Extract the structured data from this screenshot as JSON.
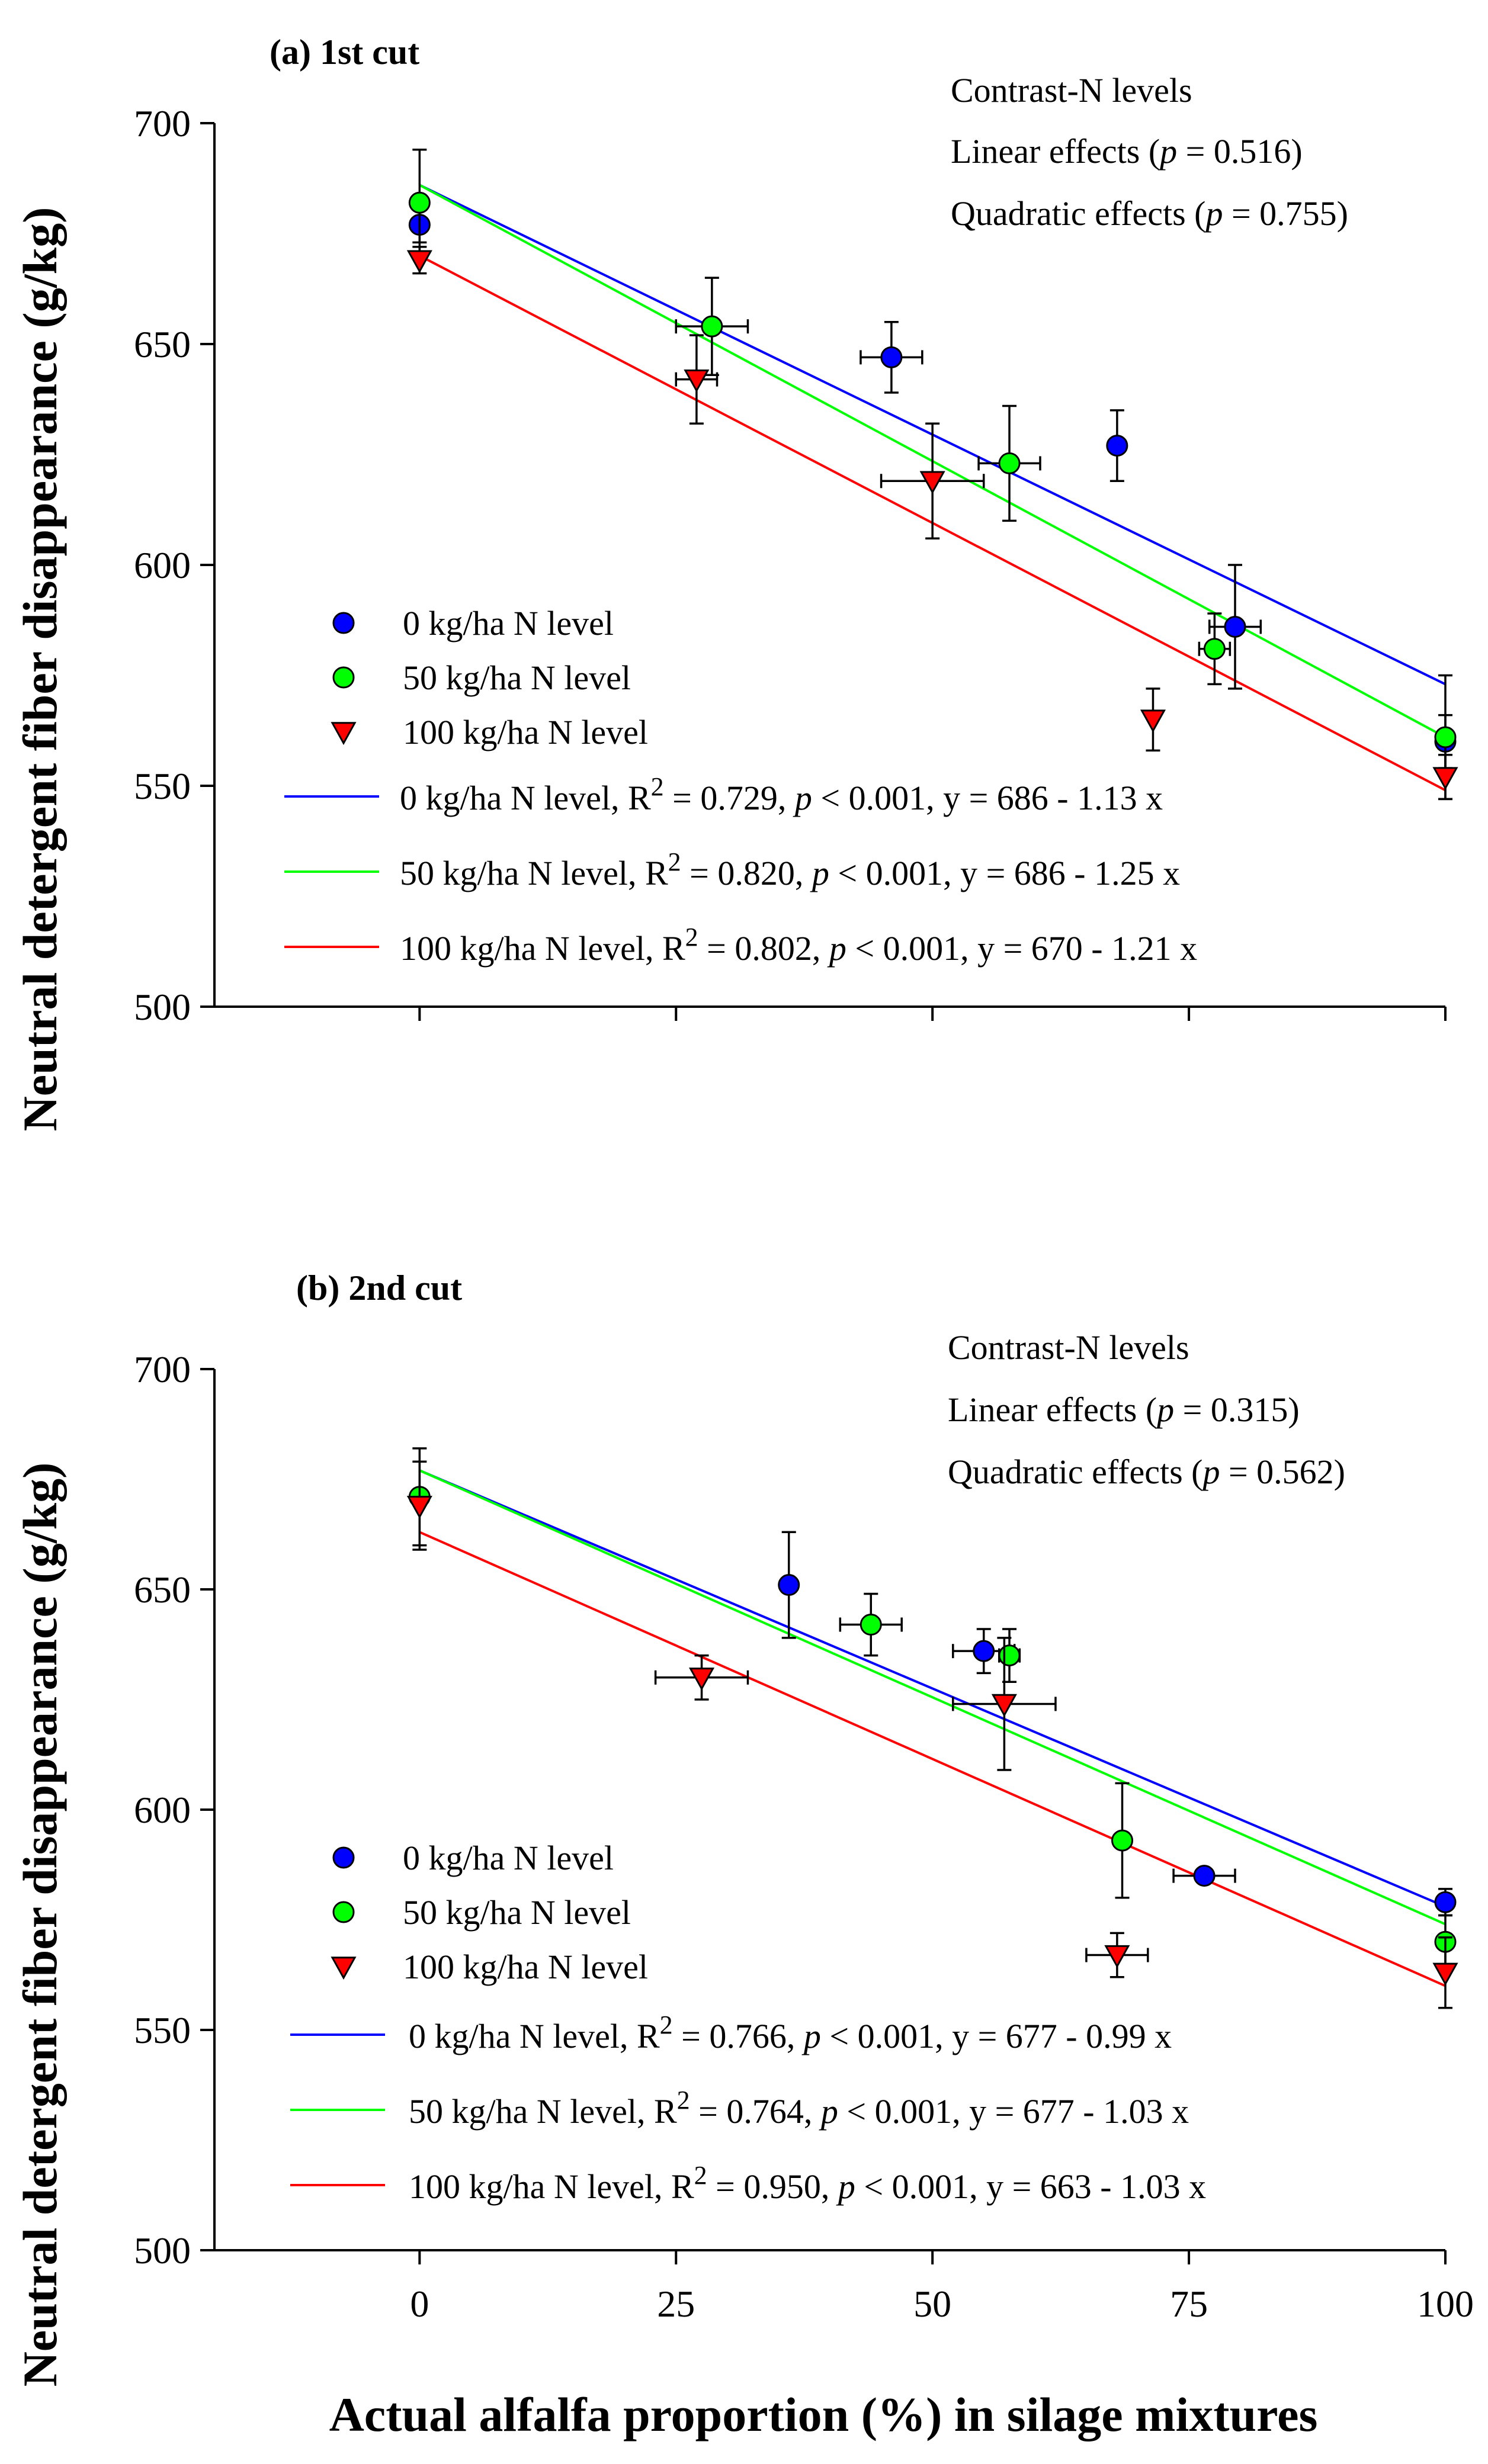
{
  "figure": {
    "ylabel": "Neutral detergent fiber disappearance (g/kg)",
    "xlabel": "Actual alfalfa proportion (%) in silage mixtures"
  },
  "chart_data": [
    {
      "type": "scatter",
      "panel_label": "(a)  1st cut",
      "ylabel": "Neutral detergent fiber disappearance (g/kg)",
      "xlim": [
        -20,
        100
      ],
      "ylim": [
        500,
        700
      ],
      "x_ticks": [
        0,
        25,
        50,
        75,
        100
      ],
      "y_ticks": [
        500,
        550,
        600,
        650,
        700
      ],
      "annotations": {
        "line1": "Contrast-N levels",
        "line2_pre": "Linear effects (",
        "line2_p": "p",
        "line2_post": " = 0.516)",
        "line3_pre": "Quadratic effects (",
        "line3_p": "p",
        "line3_post": " = 0.755)"
      },
      "series": [
        {
          "name": "0 kg/ha N level",
          "color": "#0000ff",
          "marker": "circle",
          "points": [
            {
              "x": 0,
              "y": 677,
              "xerr": 0,
              "yerr": 4
            },
            {
              "x": 46,
              "y": 647,
              "xerr": 3,
              "yerr": 8
            },
            {
              "x": 68,
              "y": 627,
              "xerr": 0,
              "yerr": 8
            },
            {
              "x": 79.5,
              "y": 586,
              "xerr": 2.5,
              "yerr": 14
            },
            {
              "x": 100,
              "y": 560,
              "xerr": 0,
              "yerr": 6
            }
          ],
          "fit": {
            "intercept": 686,
            "slope": -1.13,
            "x_range": [
              0,
              100
            ]
          },
          "fit_label": {
            "pre": "0 kg/ha N level, R",
            "sup": "2",
            "mid": " = 0.729, ",
            "p": "p",
            "post": " < 0.001, y = 686 - 1.13 x"
          }
        },
        {
          "name": "50 kg/ha N level",
          "color": "#00ff00",
          "marker": "circle",
          "points": [
            {
              "x": 0,
              "y": 682,
              "xerr": 0,
              "yerr": 12
            },
            {
              "x": 28.5,
              "y": 654,
              "xerr": 3.5,
              "yerr": 11
            },
            {
              "x": 57.5,
              "y": 623,
              "xerr": 3,
              "yerr": 13
            },
            {
              "x": 77.5,
              "y": 581,
              "xerr": 1.5,
              "yerr": 8
            },
            {
              "x": 100,
              "y": 561,
              "xerr": 0,
              "yerr": 14
            }
          ],
          "fit": {
            "intercept": 686,
            "slope": -1.25,
            "x_range": [
              0,
              100
            ]
          },
          "fit_label": {
            "pre": "50 kg/ha N level, R",
            "sup": "2",
            "mid": " = 0.820, ",
            "p": "p",
            "post": " < 0.001, y = 686 - 1.25 x"
          }
        },
        {
          "name": "100 kg/ha N level",
          "color": "#ff0000",
          "marker": "triangle-down",
          "points": [
            {
              "x": 0,
              "y": 669,
              "xerr": 0,
              "yerr": 3
            },
            {
              "x": 27,
              "y": 642,
              "xerr": 2,
              "yerr": 10
            },
            {
              "x": 50,
              "y": 619,
              "xerr": 5,
              "yerr": 13
            },
            {
              "x": 71.5,
              "y": 565,
              "xerr": 0,
              "yerr": 7
            },
            {
              "x": 100,
              "y": 552,
              "xerr": 0,
              "yerr": 5
            }
          ],
          "fit": {
            "intercept": 670,
            "slope": -1.21,
            "x_range": [
              0,
              100
            ]
          },
          "fit_label": {
            "pre": "100 kg/ha N level, R",
            "sup": "2",
            "mid": " = 0.802, ",
            "p": "p",
            "post": " < 0.001, y = 670 - 1.21 x"
          }
        }
      ]
    },
    {
      "type": "scatter",
      "panel_label": "(b)  2nd cut",
      "ylabel": "Neutral detergent fiber disappearance (g/kg)",
      "xlabel": "Actual alfalfa proportion (%) in silage mixtures",
      "xlim": [
        -20,
        100
      ],
      "ylim": [
        500,
        700
      ],
      "x_ticks": [
        0,
        25,
        50,
        75,
        100
      ],
      "y_ticks": [
        500,
        550,
        600,
        650,
        700
      ],
      "annotations": {
        "line1": "Contrast-N levels",
        "line2_pre": "Linear effects (",
        "line2_p": "p",
        "line2_post": " = 0.315)",
        "line3_pre": "Quadratic effects (",
        "line3_p": "p",
        "line3_post": " = 0.562)"
      },
      "series": [
        {
          "name": "0 kg/ha N level",
          "color": "#0000ff",
          "marker": "circle",
          "points": [
            {
              "x": 36,
              "y": 651,
              "xerr": 0,
              "yerr": 12
            },
            {
              "x": 55,
              "y": 636,
              "xerr": 3,
              "yerr": 5
            },
            {
              "x": 76.5,
              "y": 585,
              "xerr": 3,
              "yerr": 0
            },
            {
              "x": 100,
              "y": 579,
              "xerr": 0,
              "yerr": 3
            }
          ],
          "fit": {
            "intercept": 677,
            "slope": -0.99,
            "x_range": [
              0,
              100
            ]
          },
          "fit_label": {
            "pre": "0 kg/ha N level, R",
            "sup": "2",
            "mid": " = 0.766, ",
            "p": "p",
            "post": " < 0.001, y = 677 - 0.99 x"
          }
        },
        {
          "name": "50 kg/ha N level",
          "color": "#00ff00",
          "marker": "circle",
          "points": [
            {
              "x": 0,
              "y": 671,
              "xerr": 0,
              "yerr": 11
            },
            {
              "x": 44,
              "y": 642,
              "xerr": 3,
              "yerr": 7
            },
            {
              "x": 57.5,
              "y": 635,
              "xerr": 1,
              "yerr": 6
            },
            {
              "x": 68.5,
              "y": 593,
              "xerr": 0,
              "yerr": 13
            },
            {
              "x": 100,
              "y": 570,
              "xerr": 0,
              "yerr": 6
            }
          ],
          "fit": {
            "intercept": 677,
            "slope": -1.03,
            "x_range": [
              0,
              100
            ]
          },
          "fit_label": {
            "pre": "50 kg/ha N level, R",
            "sup": "2",
            "mid": " = 0.764, ",
            "p": "p",
            "post": " < 0.001, y = 677 - 1.03 x"
          }
        },
        {
          "name": "100 kg/ha N level",
          "color": "#ff0000",
          "marker": "triangle-down",
          "points": [
            {
              "x": 0,
              "y": 669,
              "xerr": 0,
              "yerr": 10
            },
            {
              "x": 27.5,
              "y": 630,
              "xerr": 4.5,
              "yerr": 5
            },
            {
              "x": 57,
              "y": 624,
              "xerr": 5,
              "yerr": 15
            },
            {
              "x": 68,
              "y": 567,
              "xerr": 3,
              "yerr": 5
            },
            {
              "x": 100,
              "y": 563,
              "xerr": 0,
              "yerr": 8
            }
          ],
          "fit": {
            "intercept": 663,
            "slope": -1.03,
            "x_range": [
              0,
              100
            ]
          },
          "fit_label": {
            "pre": "100 kg/ha N level, R",
            "sup": "2",
            "mid": " = 0.950, ",
            "p": "p",
            "post": " < 0.001, y = 663 - 1.03 x"
          }
        }
      ]
    }
  ]
}
